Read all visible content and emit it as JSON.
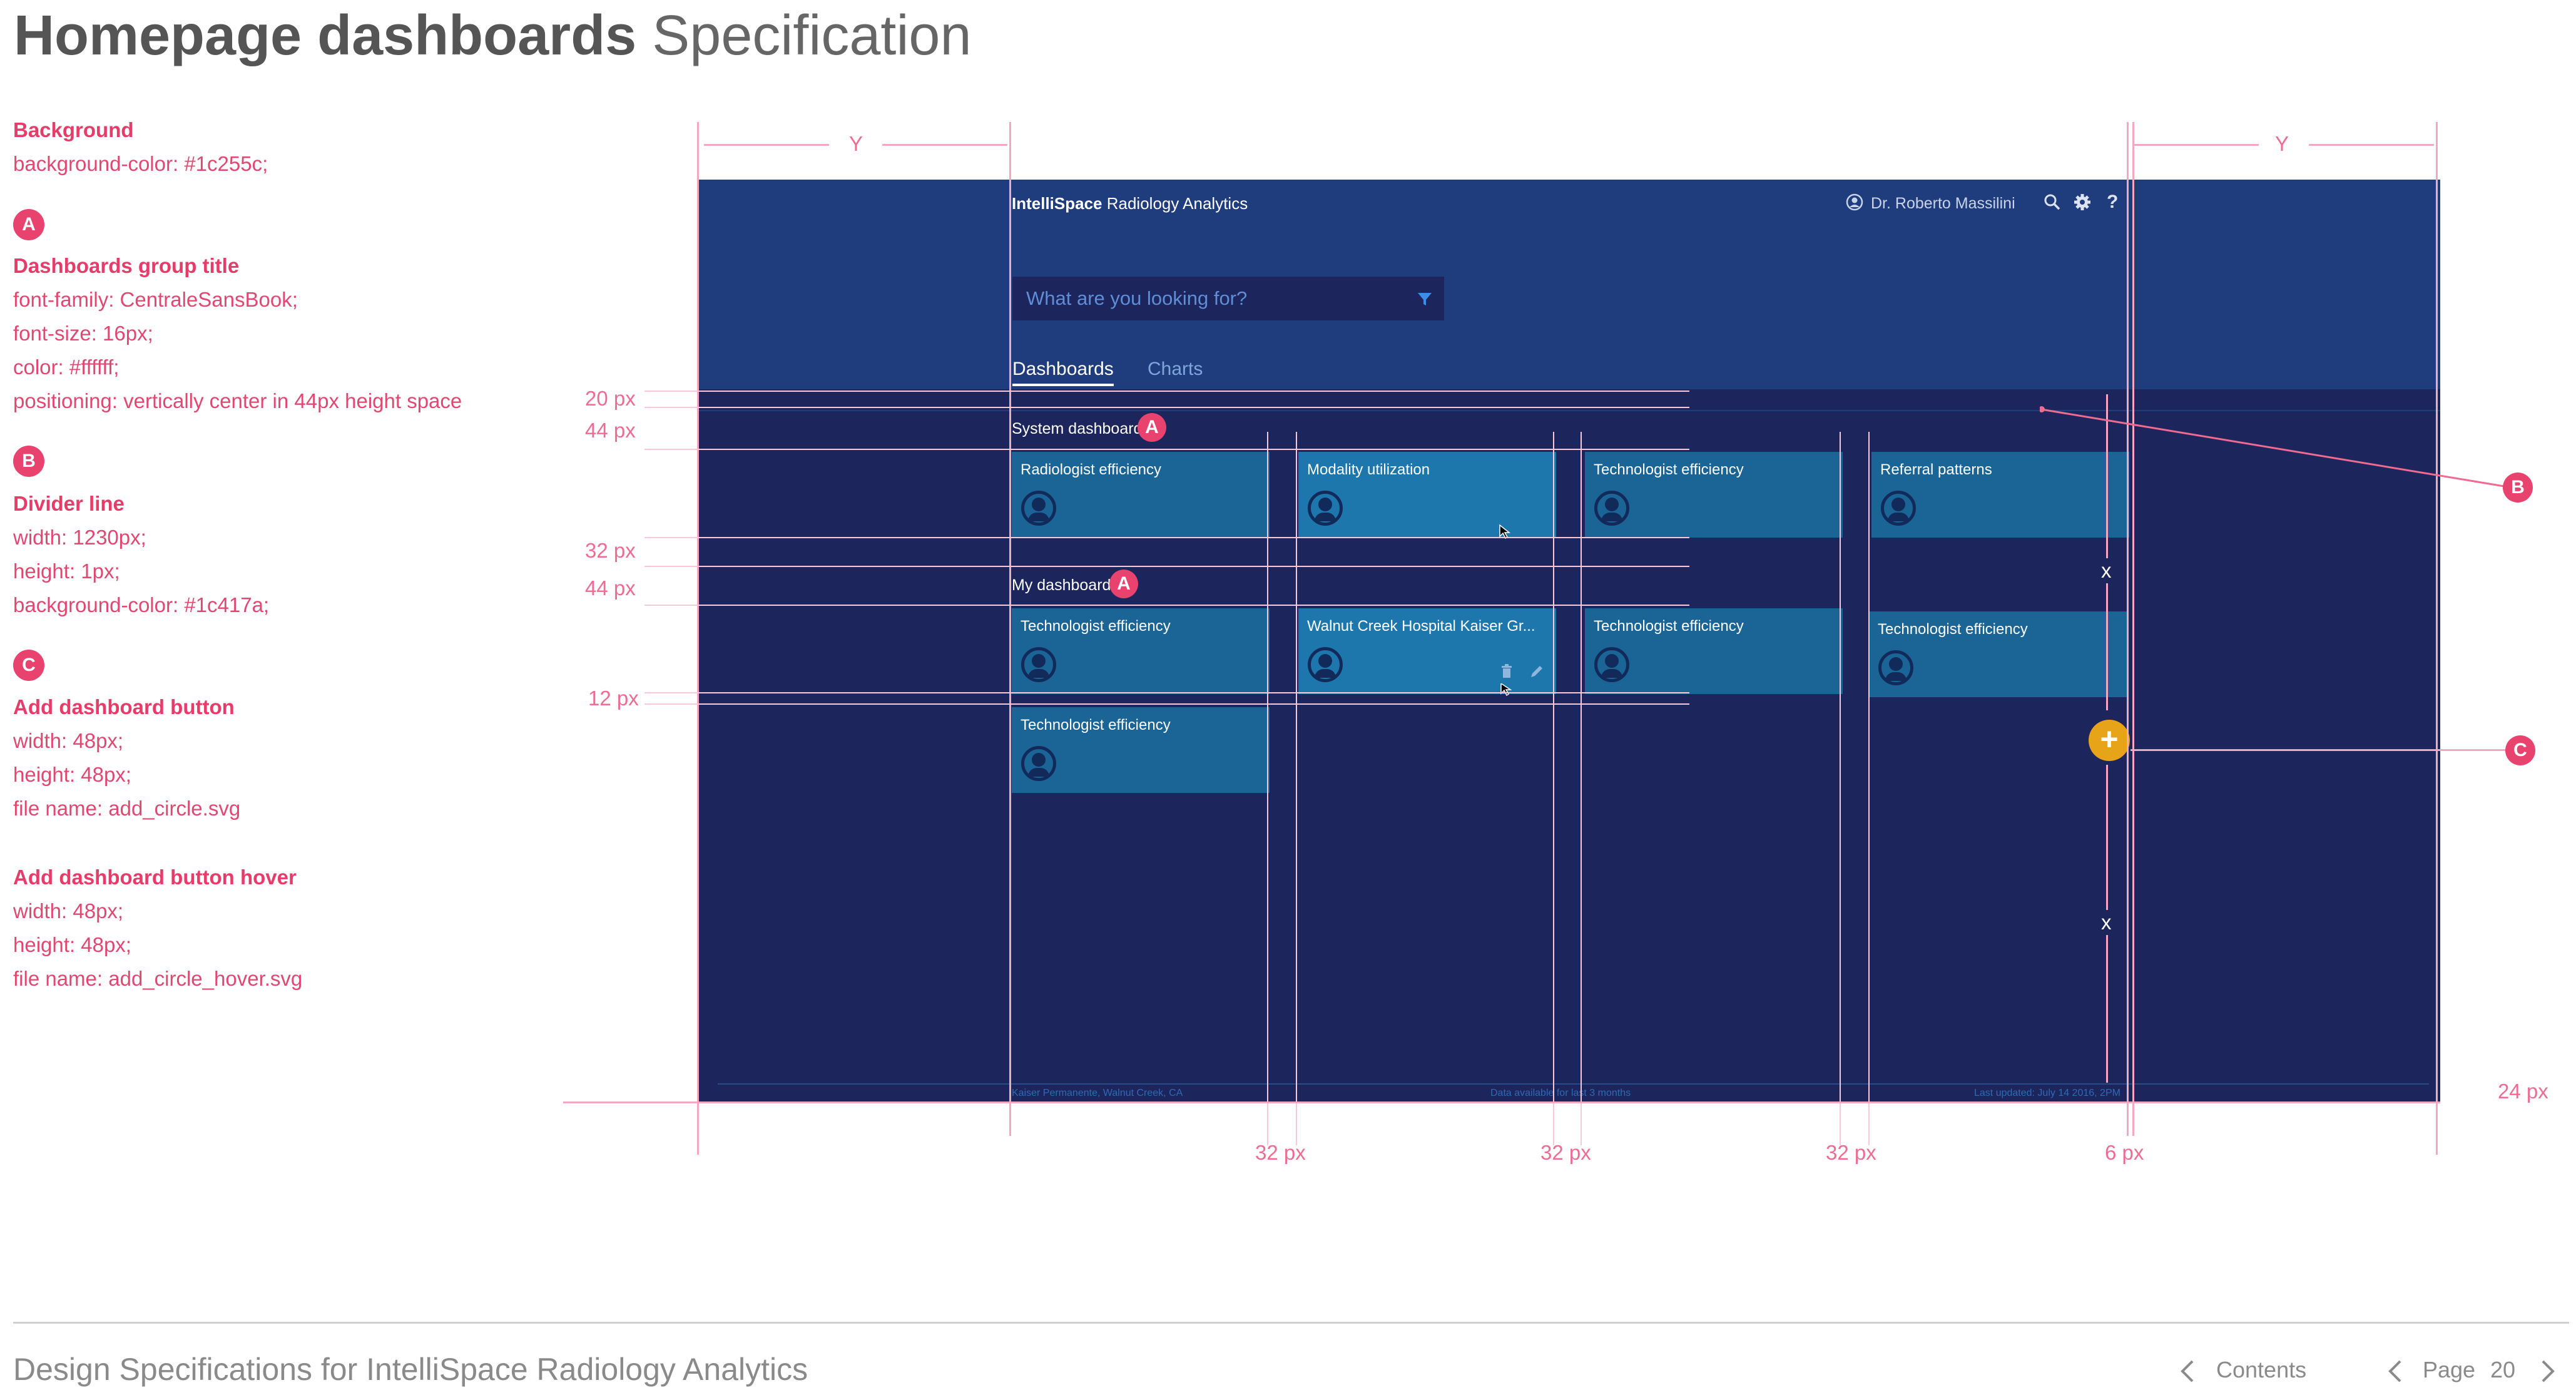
{
  "page": {
    "title_bold": "Homepage dashboards",
    "title_light": "Specification",
    "footer_title": "Design Specifications for IntelliSpace Radiology Analytics",
    "nav_contents": "Contents",
    "nav_page_label": "Page",
    "nav_page_number": "20"
  },
  "spec": {
    "background": {
      "heading": "Background",
      "lines": [
        "background-color: #1c255c;"
      ]
    },
    "a": {
      "marker": "A",
      "heading": "Dashboards group title",
      "lines": [
        "font-family: CentraleSansBook;",
        "font-size: 16px;",
        "color: #ffffff;",
        "positioning: vertically center in 44px height space"
      ]
    },
    "b": {
      "marker": "B",
      "heading": "Divider line",
      "lines": [
        "width: 1230px;",
        "height: 1px;",
        "background-color: #1c417a;"
      ]
    },
    "c": {
      "marker": "C",
      "heading": "Add dashboard button",
      "lines": [
        "width: 48px;",
        "height: 48px;",
        "file name: add_circle.svg"
      ]
    },
    "c_hover": {
      "heading": "Add dashboard button hover",
      "lines": [
        "width: 48px;",
        "height: 48px;",
        "file name: add_circle_hover.svg"
      ]
    }
  },
  "app": {
    "brand_bold": "IntelliSpace",
    "brand_rest": "Radiology Analytics",
    "user_name": "Dr. Roberto Massilini",
    "search_placeholder": "What are you looking for?",
    "tabs": [
      "Dashboards",
      "Charts"
    ],
    "active_tab": "Dashboards",
    "groups": [
      {
        "title": "System dashboard",
        "tiles": [
          "Radiologist efficiency",
          "Modality utilization",
          "Technologist efficiency",
          "Referral patterns"
        ]
      },
      {
        "title": "My dashboard",
        "tiles": [
          "Technologist efficiency",
          "Walnut Creek Hospital Kaiser Gr...",
          "Technologist efficiency",
          "Technologist efficiency",
          "Technologist efficiency"
        ]
      }
    ],
    "footer": {
      "location": "Kaiser Permanente, Walnut Creek, CA",
      "data_range": "Data available for last 3 months",
      "last_updated": "Last updated: July 14 2016, 2PM"
    },
    "add_button_symbol": "+",
    "icons": [
      "user-icon",
      "search-icon",
      "gear-icon",
      "help-icon",
      "filter-icon",
      "trash-icon",
      "pencil-icon",
      "cursor-icon",
      "avatar-icon",
      "plus-icon"
    ]
  },
  "measurements": {
    "y_label": "Y",
    "x_label": "x",
    "left": [
      "20 px",
      "44 px",
      "32 px",
      "44 px",
      "12 px"
    ],
    "bottom": [
      "32 px",
      "32 px",
      "32 px",
      "6 px"
    ],
    "right": "24 px"
  },
  "colors": {
    "background": "#1c255c",
    "header": "#1f3c7c",
    "divider": "#1c417a",
    "tile": "#1a6496",
    "accent": "#e8426f",
    "add_button": "#e8a418"
  }
}
